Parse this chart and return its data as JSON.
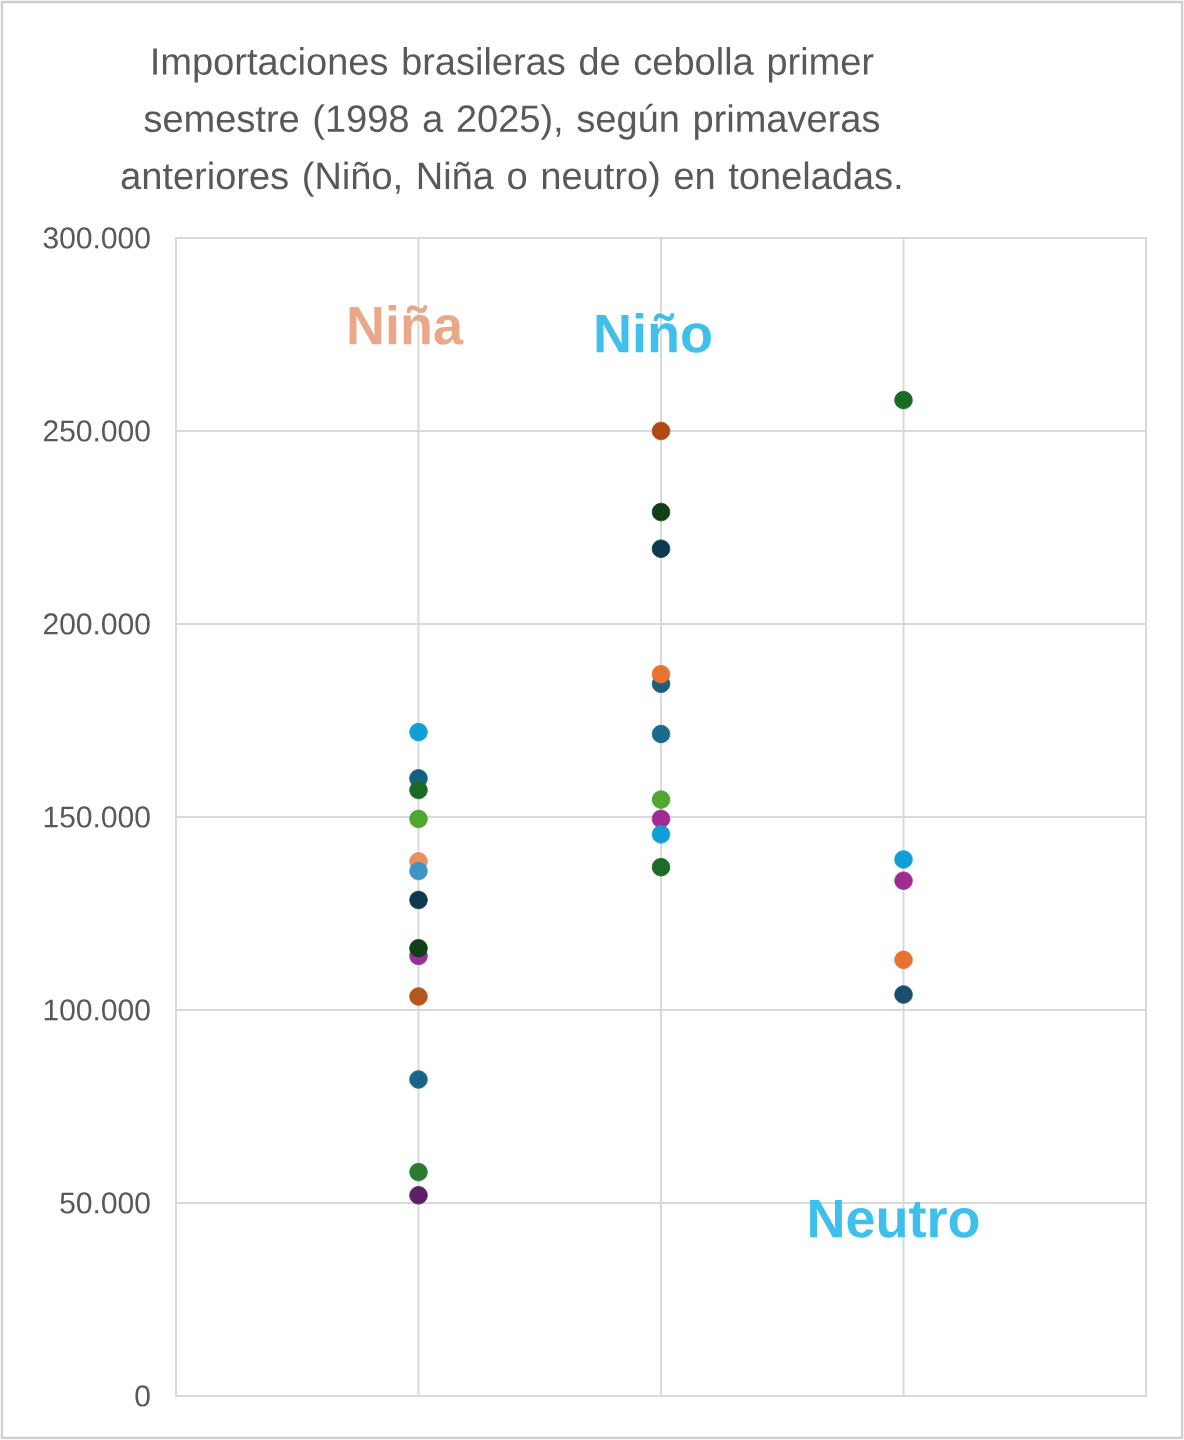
{
  "chart_data": {
    "type": "scatter",
    "title": "Importaciones brasileras de cebolla primer semestre (1998 a 2025), según primaveras anteriores (Niño, Niña o neutro) en toneladas.",
    "categories": [
      null,
      null,
      null
    ],
    "ylim": [
      0,
      300000
    ],
    "yticks": [
      0,
      {
        "value": 50000,
        "label": "50.000"
      },
      {
        "value": 100000,
        "label": "100.000"
      },
      {
        "value": 150000,
        "label": "150.000"
      },
      {
        "value": 200000,
        "label": "200.000"
      },
      {
        "value": 250000,
        "label": "250.000"
      },
      {
        "value": 300000,
        "label": "300.000"
      }
    ],
    "tick_labels": "y",
    "grid": true,
    "marker": "circle",
    "series": [
      {
        "color": "#0f9ed5",
        "values": [
          172000,
          null,
          null
        ]
      },
      {
        "color": "#156082",
        "values": [
          160000,
          null,
          null
        ]
      },
      {
        "color": "#196b24",
        "values": [
          157000,
          null,
          null
        ]
      },
      {
        "color": "#4ea72e",
        "values": [
          149500,
          null,
          null
        ]
      },
      {
        "color": "#ee8d5e",
        "values": [
          138500,
          null,
          null
        ]
      },
      {
        "color": "#3b95c6",
        "values": [
          136000,
          null,
          null
        ]
      },
      {
        "color": "#0d3a4e",
        "values": [
          128500,
          null,
          null
        ]
      },
      {
        "color": "#96309a",
        "values": [
          114000,
          null,
          null
        ]
      },
      {
        "color": "#0f4016",
        "values": [
          116000,
          null,
          null
        ]
      },
      {
        "color": "#b4561e",
        "values": [
          103500,
          null,
          null
        ]
      },
      {
        "color": "#1a6487",
        "values": [
          82000,
          null,
          null
        ]
      },
      {
        "color": "#2b7a30",
        "values": [
          58000,
          null,
          null
        ]
      },
      {
        "color": "#5e1f66",
        "values": [
          52000,
          null,
          null
        ]
      },
      {
        "color": "#b04a14",
        "values": [
          null,
          250000,
          null
        ]
      },
      {
        "color": "#0f4016",
        "values": [
          null,
          229000,
          null
        ]
      },
      {
        "color": "#0d3a4e",
        "values": [
          null,
          219500,
          null
        ]
      },
      {
        "color": "#1b5e7e",
        "values": [
          null,
          184500,
          null
        ]
      },
      {
        "color": "#e97132",
        "values": [
          null,
          187000,
          null
        ]
      },
      {
        "color": "#1a6a8c",
        "values": [
          null,
          171500,
          null
        ]
      },
      {
        "color": "#4ea72e",
        "values": [
          null,
          154500,
          null
        ]
      },
      {
        "color": "#a02b93",
        "values": [
          null,
          149500,
          null
        ]
      },
      {
        "color": "#0f9ed5",
        "values": [
          null,
          145500,
          null
        ]
      },
      {
        "color": "#1e6b28",
        "values": [
          null,
          137000,
          null
        ]
      },
      {
        "color": "#196b24",
        "values": [
          null,
          null,
          258000
        ]
      },
      {
        "color": "#0f9ed5",
        "values": [
          null,
          null,
          139000
        ]
      },
      {
        "color": "#a02b93",
        "values": [
          null,
          null,
          133500
        ]
      },
      {
        "color": "#e97132",
        "values": [
          null,
          null,
          113000
        ]
      },
      {
        "color": "#1a4e6e",
        "values": [
          null,
          null,
          104000
        ]
      }
    ],
    "annotations": [
      "Niña",
      "Niño",
      "Neutro"
    ]
  }
}
